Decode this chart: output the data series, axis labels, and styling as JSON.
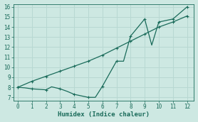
{
  "xlabel": "Humidex (Indice chaleur)",
  "xlim": [
    -0.3,
    12.5
  ],
  "ylim": [
    6.7,
    16.3
  ],
  "yticks": [
    7,
    8,
    9,
    10,
    11,
    12,
    13,
    14,
    15,
    16
  ],
  "xticks": [
    0,
    1,
    2,
    3,
    4,
    5,
    6,
    7,
    8,
    9,
    10,
    11,
    12
  ],
  "bg_color": "#cde8e2",
  "line_color": "#1a6b5a",
  "grid_color": "#b8d8d2",
  "zigzag_x": [
    0,
    0.5,
    1,
    2,
    2.4,
    3,
    3.5,
    4,
    4.5,
    5,
    5.5,
    6,
    7,
    7.5,
    8,
    9,
    9.5,
    10,
    11,
    12
  ],
  "zigzag_y": [
    8.0,
    7.95,
    7.85,
    7.75,
    8.05,
    7.85,
    7.6,
    7.3,
    7.15,
    7.0,
    7.0,
    8.1,
    10.6,
    10.6,
    13.1,
    14.8,
    12.2,
    14.5,
    14.8,
    16.0
  ],
  "zigzag_marker_x": [
    0,
    1,
    2,
    3,
    4,
    5,
    6,
    7,
    8,
    9,
    10,
    11,
    12
  ],
  "zigzag_marker_y": [
    8.0,
    7.85,
    7.75,
    7.85,
    7.3,
    7.0,
    8.1,
    10.6,
    13.1,
    14.8,
    14.5,
    14.8,
    16.0
  ],
  "trend_x": [
    0,
    1,
    2,
    3,
    4,
    5,
    6,
    7,
    8,
    9,
    10,
    11,
    12
  ],
  "trend_y": [
    8.0,
    8.6,
    9.1,
    9.6,
    10.1,
    10.6,
    11.2,
    11.9,
    12.6,
    13.3,
    14.0,
    14.5,
    15.1
  ],
  "trend_marker_x": [
    0,
    1,
    2,
    3,
    4,
    5,
    6,
    7,
    8,
    9,
    10,
    11,
    12
  ],
  "trend_marker_y": [
    8.0,
    8.6,
    9.1,
    9.6,
    10.1,
    10.6,
    11.2,
    11.9,
    12.6,
    13.3,
    14.0,
    14.5,
    15.1
  ]
}
